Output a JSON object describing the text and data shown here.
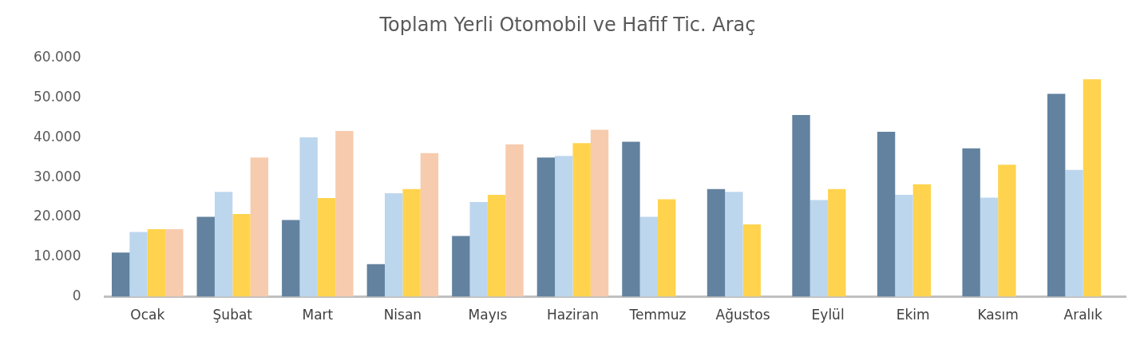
{
  "chart_data": {
    "type": "bar",
    "title": "Toplam Yerli Otomobil ve Hafif Tic. Araç",
    "categories": [
      "Ocak",
      "Şubat",
      "Mart",
      "Nisan",
      "Mayıs",
      "Haziran",
      "Temmuz",
      "Ağustos",
      "Eylül",
      "Ekim",
      "Kasım",
      "Aralık"
    ],
    "series": [
      {
        "color": "#62829f",
        "values": [
          11100,
          20100,
          19300,
          8200,
          15300,
          35000,
          39000,
          27100,
          45700,
          41500,
          37300,
          51000
        ]
      },
      {
        "color": "#bcd6ee",
        "values": [
          16300,
          26400,
          40100,
          26000,
          23800,
          35400,
          20100,
          26400,
          24300,
          25600,
          24900,
          31900
        ]
      },
      {
        "color": "#ffd34d",
        "values": [
          17000,
          20800,
          24800,
          27100,
          25600,
          38600,
          24500,
          18200,
          27100,
          28300,
          33200,
          54700
        ]
      },
      {
        "color": "#f7cbad",
        "values": [
          17000,
          35000,
          41700,
          36100,
          38300,
          42000,
          null,
          null,
          null,
          null,
          null,
          null
        ]
      }
    ],
    "ylim": [
      0,
      60000
    ],
    "yticks": [
      0,
      {
        "value": 10000,
        "label": "10.000"
      },
      {
        "value": 20000,
        "label": "20.000"
      },
      {
        "value": 30000,
        "label": "30.000"
      },
      {
        "value": 40000,
        "label": "40.000"
      },
      {
        "value": 50000,
        "label": "50.000"
      },
      {
        "value": 60000,
        "label": "60.000"
      }
    ],
    "grid": false,
    "legend": false
  }
}
